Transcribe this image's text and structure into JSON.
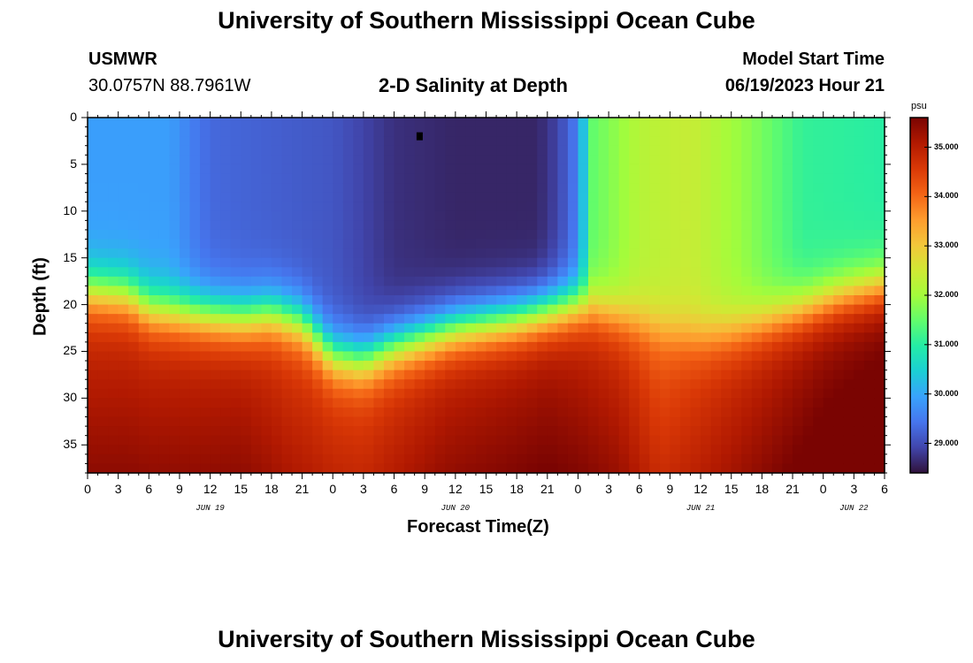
{
  "page": {
    "title": "University of Southern Mississippi Ocean Cube",
    "title_bottom": "University of Southern Mississippi Ocean Cube",
    "station_name": "USMWR",
    "station_coords": "30.0757N  88.7961W",
    "subtitle": "2-D Salinity at Depth",
    "model_start_label": "Model Start Time",
    "model_start_value": "06/19/2023 Hour 21"
  },
  "chart_data": {
    "type": "heatmap",
    "title": "2-D Salinity at Depth",
    "xlabel": "Forecast Time(Z)",
    "ylabel": "Depth (ft)",
    "colorbar_unit": "psu",
    "x_ticks": [
      "0",
      "3",
      "6",
      "9",
      "12",
      "15",
      "18",
      "21",
      "0",
      "3",
      "6",
      "9",
      "12",
      "15",
      "18",
      "21",
      "0",
      "3",
      "6",
      "9",
      "12",
      "15",
      "18",
      "21",
      "0",
      "3",
      "6"
    ],
    "date_labels": [
      {
        "label": "JUN 19",
        "tick_index": 4
      },
      {
        "label": "JUN 20",
        "tick_index": 12
      },
      {
        "label": "JUN 21",
        "tick_index": 20
      },
      {
        "label": "JUN 22",
        "tick_index": 25
      }
    ],
    "y_ticks": [
      0,
      5,
      10,
      15,
      20,
      25,
      30,
      35
    ],
    "ylim": [
      0,
      38
    ],
    "xlim_hours": [
      0,
      78
    ],
    "colorbar_ticks": [
      "29.000",
      "30.000",
      "31.000",
      "32.000",
      "33.000",
      "34.000",
      "35.000"
    ],
    "colorbar_range": [
      28.4,
      35.6
    ],
    "colors": [
      "#30123b",
      "#4145ab",
      "#4675ed",
      "#39a2fc",
      "#1bcfd4",
      "#24eca6",
      "#61fc6c",
      "#a4fc3b",
      "#d1e834",
      "#f3c63a",
      "#fe9b2d",
      "#f36315",
      "#d93806",
      "#b11901",
      "#7a0402"
    ],
    "grid": false,
    "marker": {
      "hour": 32.5,
      "depth_ft": 2.0
    }
  }
}
